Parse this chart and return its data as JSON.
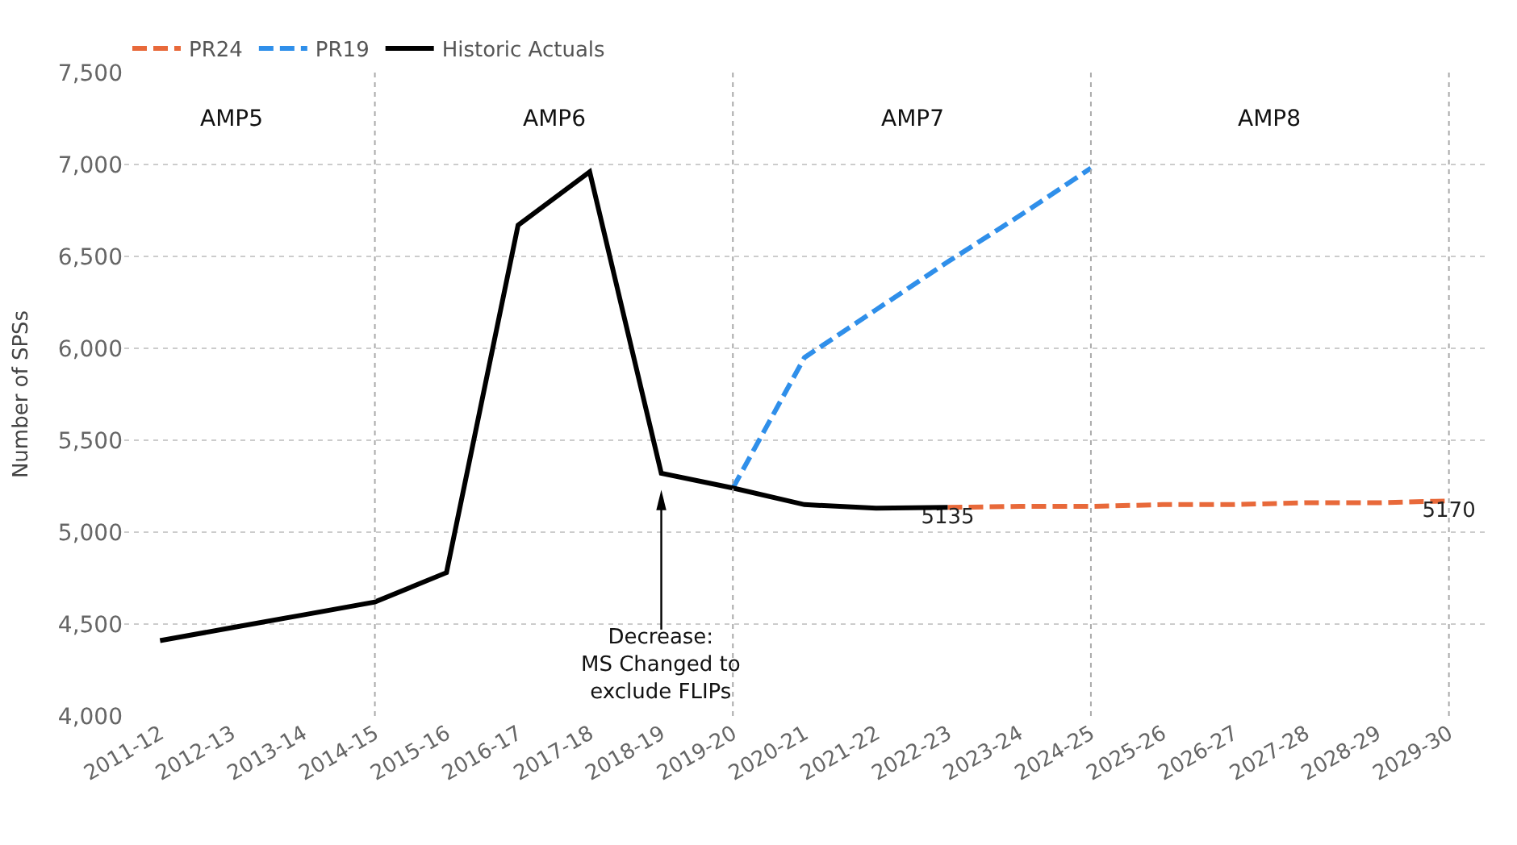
{
  "chart_data": {
    "type": "line",
    "ylabel": "Number of SPSs",
    "categories": [
      "2011-12",
      "2012-13",
      "2013-14",
      "2014-15",
      "2015-16",
      "2016-17",
      "2017-18",
      "2018-19",
      "2019-20",
      "2020-21",
      "2021-22",
      "2022-23",
      "2023-24",
      "2024-25",
      "2025-26",
      "2026-27",
      "2027-28",
      "2028-29",
      "2029-30"
    ],
    "series": [
      {
        "name": "PR24",
        "color": "#e8693a",
        "line_style": "dashed",
        "values": [
          null,
          null,
          null,
          null,
          null,
          null,
          null,
          null,
          null,
          null,
          null,
          5135,
          5140,
          5140,
          5150,
          5150,
          5160,
          5160,
          5170
        ],
        "value_labels": [
          null,
          null,
          null,
          null,
          null,
          null,
          null,
          null,
          null,
          null,
          null,
          "5135",
          null,
          null,
          null,
          null,
          null,
          null,
          "5170"
        ]
      },
      {
        "name": "PR19",
        "color": "#2f8fea",
        "line_style": "dashed",
        "values": [
          null,
          null,
          null,
          null,
          null,
          null,
          null,
          null,
          5240,
          5950,
          6210,
          6470,
          6720,
          6980,
          null,
          null,
          null,
          null,
          null
        ]
      },
      {
        "name": "Historic Actuals",
        "color": "#000000",
        "line_style": "solid",
        "values": [
          4410,
          4480,
          4550,
          4620,
          4780,
          6670,
          6960,
          5320,
          5240,
          5150,
          5130,
          5135,
          null,
          null,
          null,
          null,
          null,
          null,
          null
        ]
      }
    ],
    "ylim": [
      4000,
      7500
    ],
    "yticks": [
      {
        "value": 4000,
        "label": "4,000"
      },
      {
        "value": 4500,
        "label": "4,500"
      },
      {
        "value": 5000,
        "label": "5,000"
      },
      {
        "value": 5500,
        "label": "5,500"
      },
      {
        "value": 6000,
        "label": "6,000"
      },
      {
        "value": 6500,
        "label": "6,500"
      },
      {
        "value": 7000,
        "label": "7,000"
      },
      {
        "value": 7500,
        "label": "7,500"
      }
    ],
    "grid": "y",
    "legend": "top left",
    "marker": "none",
    "ref_lines": [
      {
        "axis": "x",
        "value": "2014-15",
        "color": "#aaaaaa",
        "line_style": "dotted"
      },
      {
        "axis": "x",
        "value": "2019-20",
        "color": "#aaaaaa",
        "line_style": "dotted"
      },
      {
        "axis": "x",
        "value": "2024-25",
        "color": "#aaaaaa",
        "line_style": "dotted"
      },
      {
        "axis": "x",
        "value": "2029-30",
        "color": "#aaaaaa",
        "line_style": "dotted"
      }
    ],
    "annotations": [
      "AMP5",
      "AMP6",
      "AMP7",
      "AMP8",
      "Decrease:\nMS Changed to\nexclude FLIPs"
    ]
  }
}
